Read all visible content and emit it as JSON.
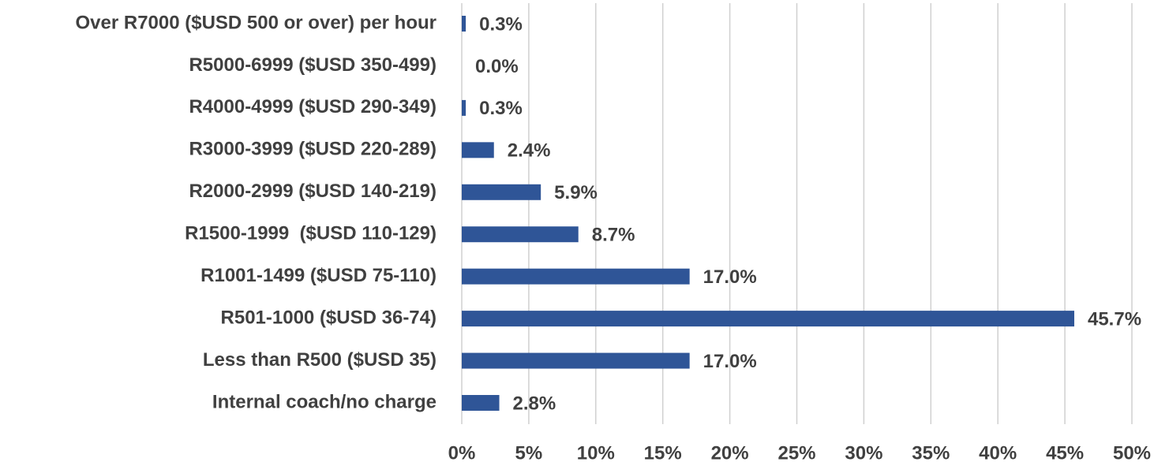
{
  "chart_data": {
    "type": "bar",
    "orientation": "horizontal",
    "categories": [
      "Over R7000 ($USD 500 or over) per hour",
      "R5000-6999 ($USD 350-499)",
      "R4000-4999 ($USD 290-349)",
      "R3000-3999 ($USD 220-289)",
      "R2000-2999 ($USD 140-219)",
      "R1500-1999  ($USD 110-129)",
      "R1001-1499 ($USD 75-110)",
      "R501-1000 ($USD 36-74)",
      "Less than R500 ($USD 35)",
      "Internal coach/no charge"
    ],
    "values": [
      0.3,
      0.0,
      0.3,
      2.4,
      5.9,
      8.7,
      17.0,
      45.7,
      17.0,
      2.8
    ],
    "value_labels": [
      "0.3%",
      "0.0%",
      "0.3%",
      "2.4%",
      "5.9%",
      "8.7%",
      "17.0%",
      "45.7%",
      "17.0%",
      "2.8%"
    ],
    "color": "#2f5597",
    "xlim": [
      0,
      50
    ],
    "xticks": [
      {
        "value": 0,
        "label": "0%"
      },
      {
        "value": 5,
        "label": "5%"
      },
      {
        "value": 10,
        "label": "10%"
      },
      {
        "value": 15,
        "label": "15%"
      },
      {
        "value": 20,
        "label": "20%"
      },
      {
        "value": 25,
        "label": "25%"
      },
      {
        "value": 30,
        "label": "30%"
      },
      {
        "value": 35,
        "label": "35%"
      },
      {
        "value": 40,
        "label": "40%"
      },
      {
        "value": 45,
        "label": "45%"
      },
      {
        "value": 50,
        "label": "50%"
      }
    ],
    "grid": true
  }
}
